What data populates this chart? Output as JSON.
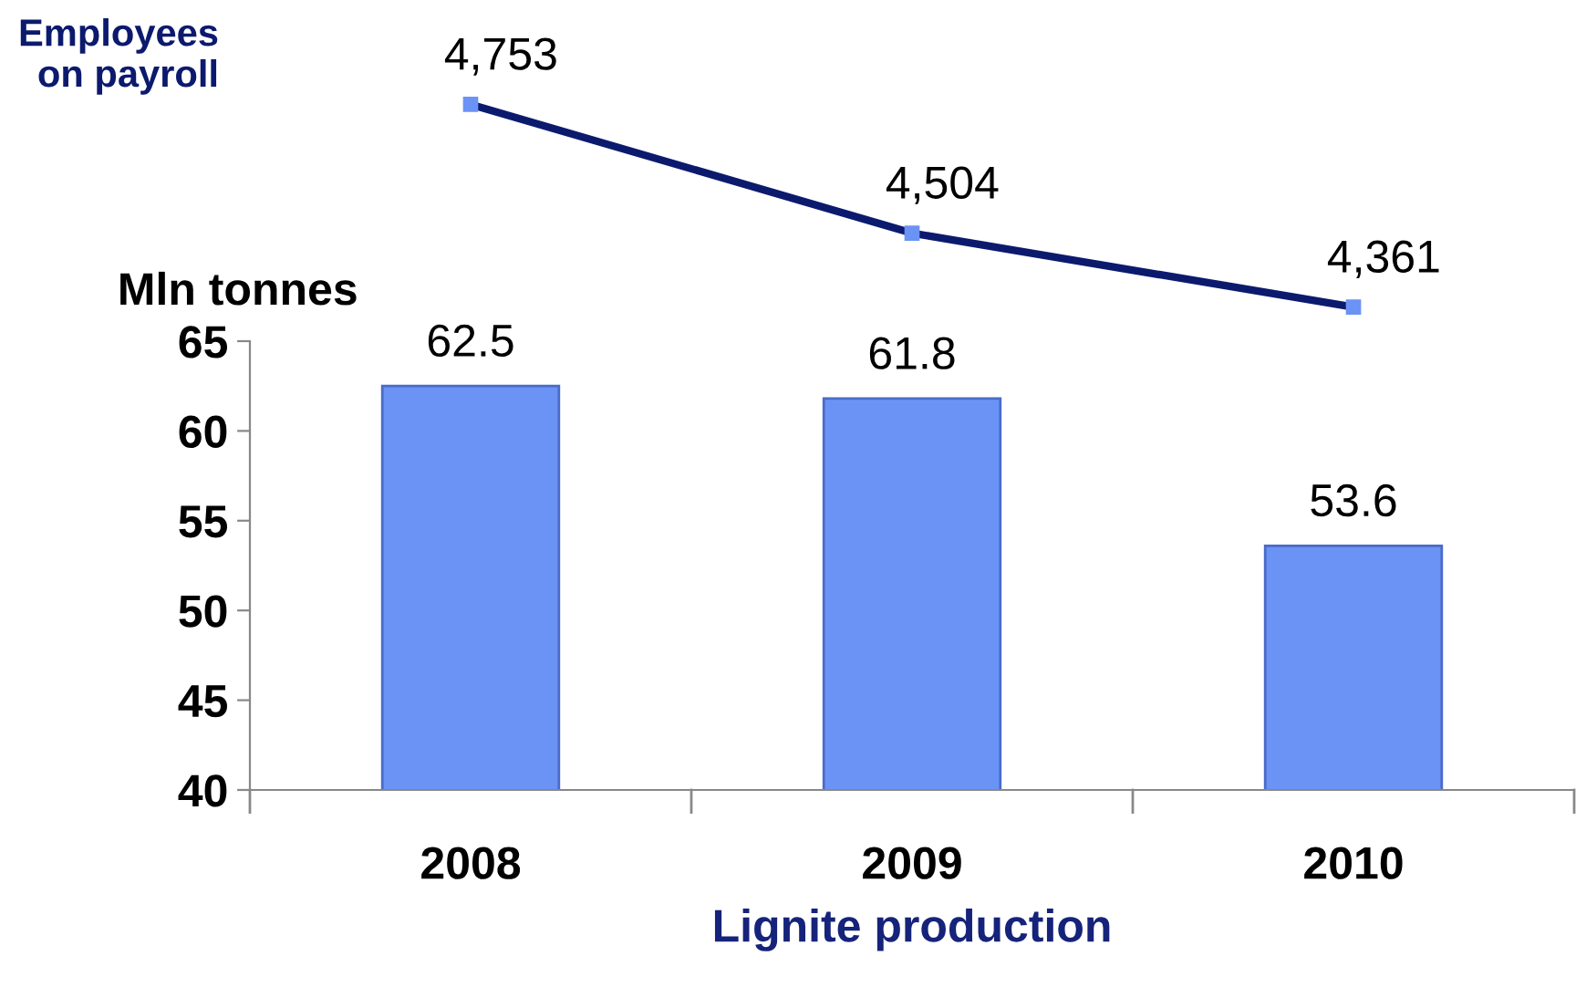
{
  "chart_data": [
    {
      "type": "line",
      "categories": [
        "2008",
        "2009",
        "2010"
      ],
      "tick_labels": false,
      "legend": false,
      "series": [
        {
          "name": "Employees\non payroll",
          "color": "#0c1a6e",
          "marker": "square",
          "values": [
            4753,
            4504,
            4361
          ],
          "value_labels": [
            "4,753",
            "4,504",
            "4,361"
          ]
        }
      ]
    },
    {
      "type": "bar",
      "categories": [
        "2008",
        "2009",
        "2010"
      ],
      "series": [
        {
          "type": "bar",
          "color": "#6b93f5",
          "values": [
            62.5,
            61.8,
            53.6
          ]
        }
      ],
      "ylabel": "Mln tonnes",
      "xlabel": "Lignite production",
      "ylim": [
        40,
        65
      ],
      "yticks": [
        40,
        45,
        50,
        55,
        60,
        65
      ],
      "data_labels": true,
      "grid": false,
      "legend": false
    }
  ]
}
